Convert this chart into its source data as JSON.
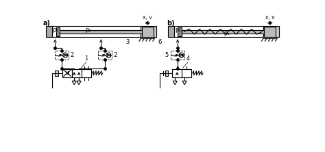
{
  "bg_color": "#ffffff",
  "line_color": "#000000",
  "label_a": "a)",
  "label_b": "b)",
  "p1_label": "p₁",
  "p2_label": "p₂",
  "pa_label": "pₐ",
  "xv_label": "x, v",
  "label_1": "1",
  "label_2": "2",
  "label_3": "3",
  "label_4": "4",
  "label_5": "5",
  "label_6": "6",
  "font_size": 6.0
}
